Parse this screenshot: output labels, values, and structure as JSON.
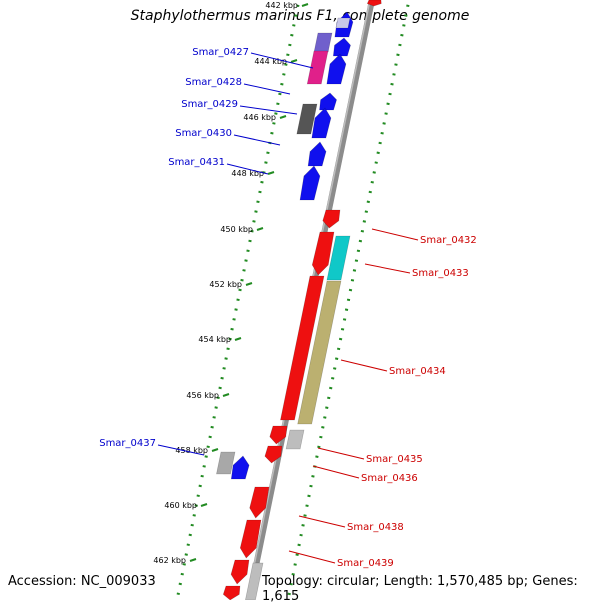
{
  "title": "Staphylothermus marinus F1, complete genome",
  "accession_text": "Accession: NC_009033",
  "topology_text": "Topology: circular; Length: 1,570,485 bp; Genes: 1,615",
  "colors": {
    "backbone": "#888888",
    "gc_dots": "#228b22",
    "forward_label": "#0000cc",
    "reverse_label": "#cc0000"
  },
  "ticks": [
    {
      "label": "442 kbp"
    },
    {
      "label": "444 kbp"
    },
    {
      "label": "446 kbp"
    },
    {
      "label": "448 kbp"
    },
    {
      "label": "450 kbp"
    },
    {
      "label": "452 kbp"
    },
    {
      "label": "454 kbp"
    },
    {
      "label": "456 kbp"
    },
    {
      "label": "458 kbp"
    },
    {
      "label": "460 kbp"
    },
    {
      "label": "462 kbp"
    }
  ],
  "gene_labels": [
    {
      "text": "Smar_0427",
      "strand": "forward"
    },
    {
      "text": "Smar_0428",
      "strand": "forward"
    },
    {
      "text": "Smar_0429",
      "strand": "forward"
    },
    {
      "text": "Smar_0430",
      "strand": "forward"
    },
    {
      "text": "Smar_0431",
      "strand": "forward"
    },
    {
      "text": "Smar_0432",
      "strand": "reverse"
    },
    {
      "text": "Smar_0433",
      "strand": "reverse"
    },
    {
      "text": "Smar_0434",
      "strand": "reverse"
    },
    {
      "text": "Smar_0435",
      "strand": "reverse"
    },
    {
      "text": "Smar_0436",
      "strand": "reverse"
    },
    {
      "text": "Smar_0437",
      "strand": "forward"
    },
    {
      "text": "Smar_0438",
      "strand": "reverse"
    },
    {
      "text": "Smar_0439",
      "strand": "reverse"
    }
  ]
}
